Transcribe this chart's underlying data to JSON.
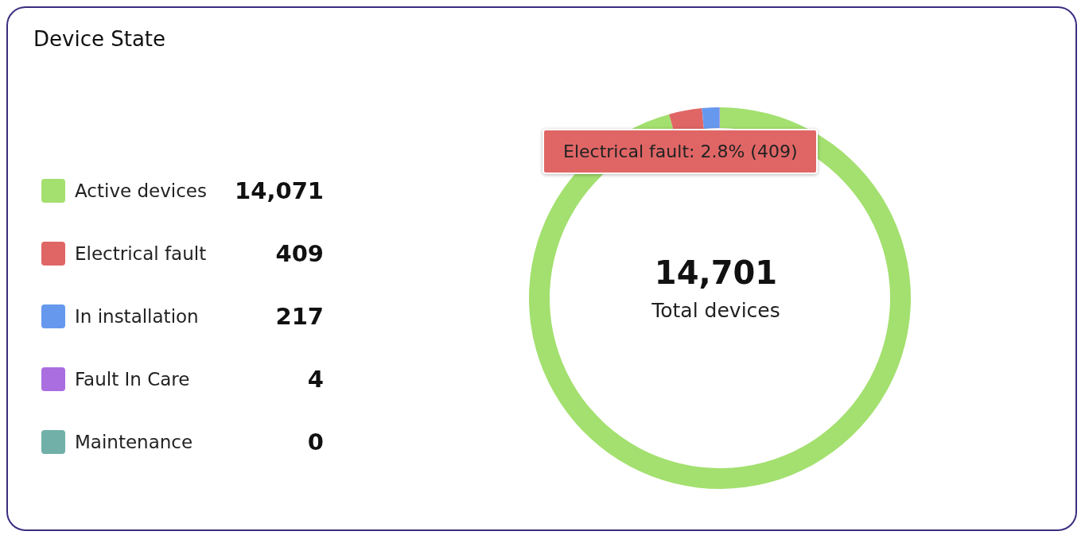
{
  "chart_data": {
    "type": "donut",
    "title": "Device State",
    "categories": [
      "Active devices",
      "Electrical fault",
      "In installation",
      "Fault In Care",
      "Maintenance"
    ],
    "values": [
      14071,
      409,
      217,
      4,
      0
    ],
    "colors": [
      "#a3e06f",
      "#e06666",
      "#6699ee",
      "#aa6ee0",
      "#70b0a8"
    ],
    "legend": "left",
    "value_labels": [
      "14,071",
      "409",
      "217",
      "4",
      "0"
    ],
    "annotations": [
      "14,701",
      "Total devices",
      "Electrical fault: 2.8% (409)"
    ]
  }
}
